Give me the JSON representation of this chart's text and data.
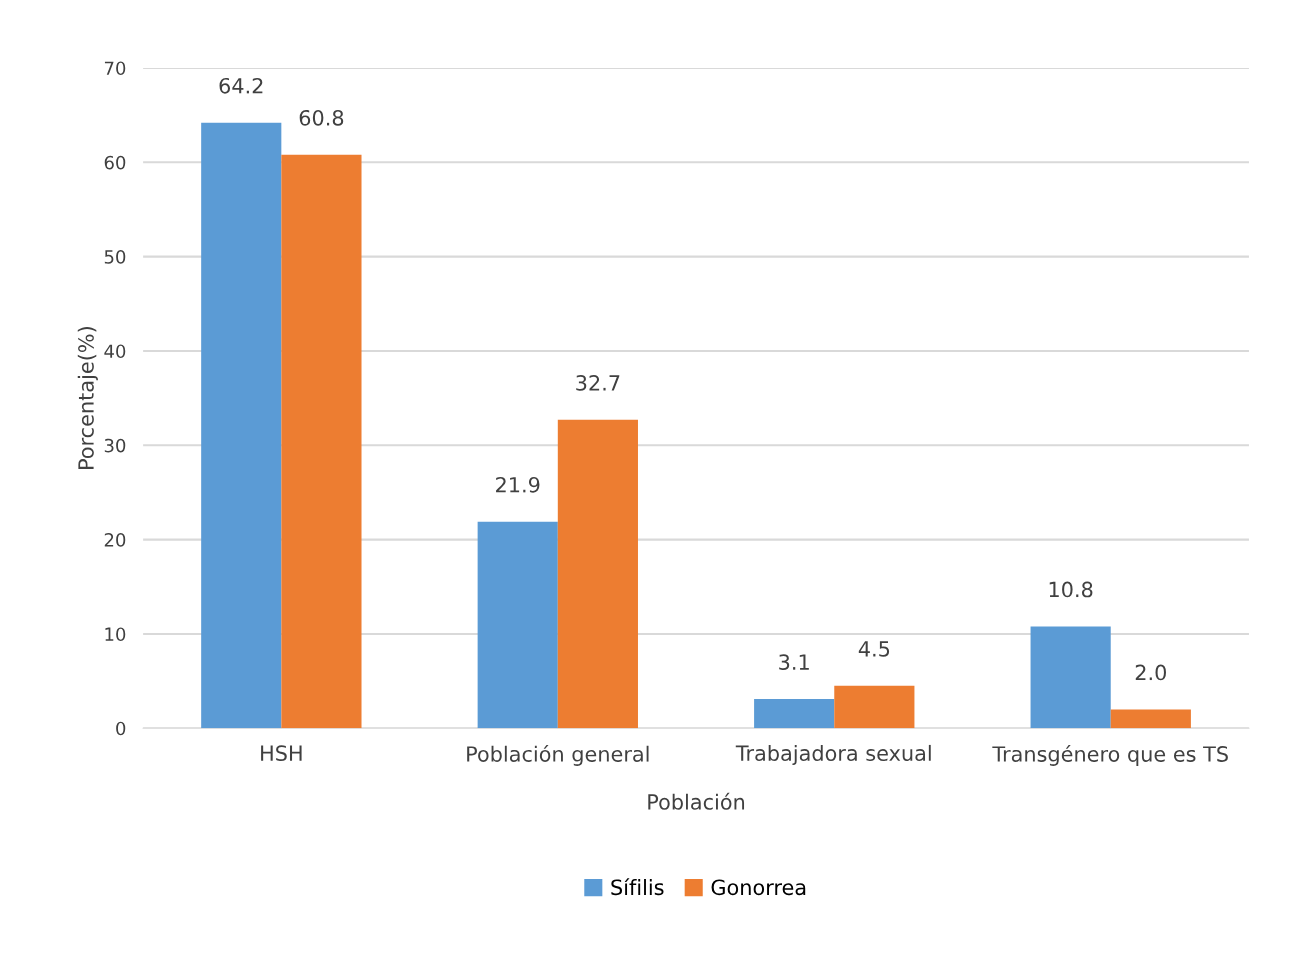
{
  "chart_data": {
    "type": "bar",
    "xlabel": "Población",
    "ylabel": "Porcentaje(%)",
    "categories": [
      "HSH",
      "Población general",
      "Trabajadora sexual",
      "Transgénero que es TS"
    ],
    "series": [
      {
        "name": "Sífilis",
        "color": "#5b9bd5",
        "values": [
          64.2,
          21.9,
          3.1,
          10.8
        ],
        "value_labels": [
          "64.2",
          "21.9",
          "3.1",
          "10.8"
        ]
      },
      {
        "name": "Gonorrea",
        "color": "#ed7d31",
        "values": [
          60.8,
          32.7,
          4.5,
          2.0
        ],
        "value_labels": [
          "60.8",
          "32.7",
          "4.5",
          "2.0"
        ]
      }
    ],
    "ylim": [
      0,
      70
    ],
    "yticks": [
      0,
      10,
      20,
      30,
      40,
      50,
      60,
      70
    ],
    "grid": "y",
    "legend": "bottom"
  }
}
